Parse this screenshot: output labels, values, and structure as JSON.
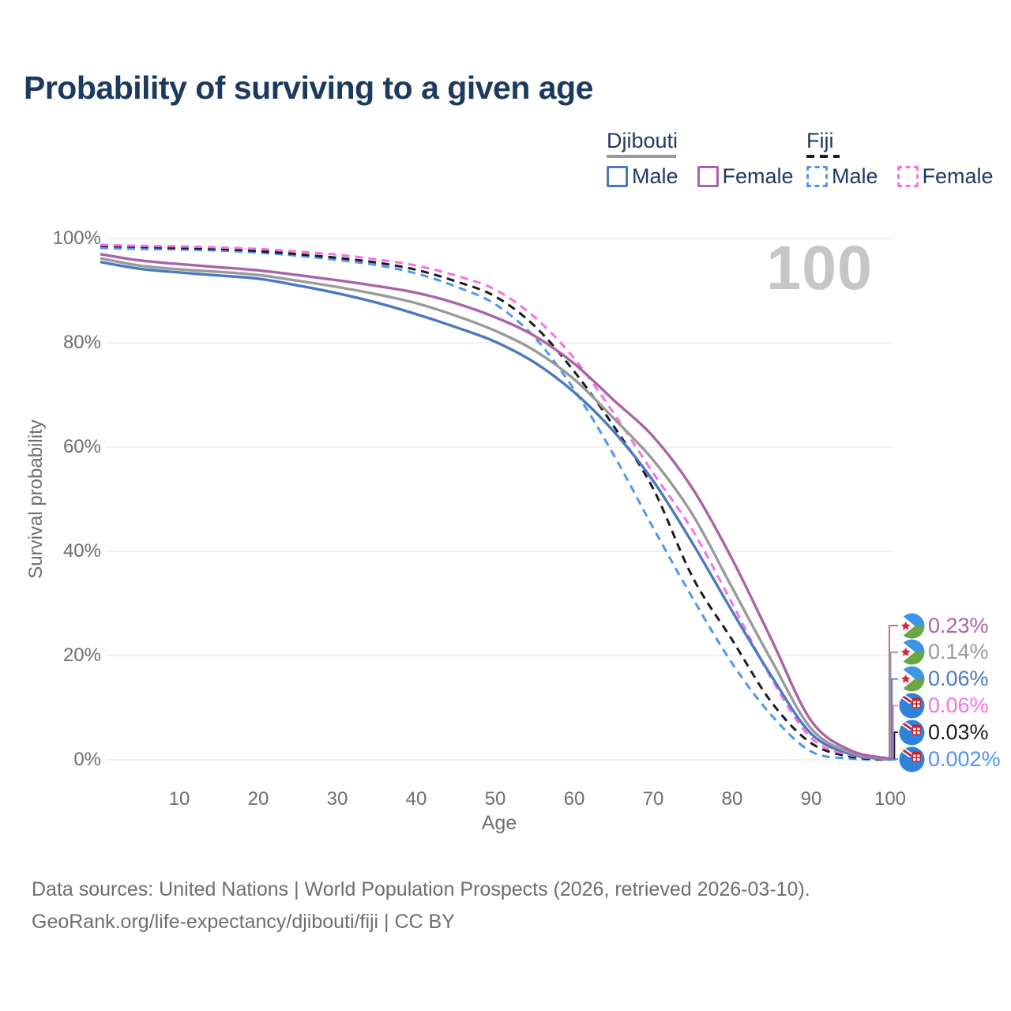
{
  "title": "Probability of surviving to a given age",
  "watermark_age": "100",
  "legend": {
    "groups": [
      {
        "country": "Djibouti",
        "line_style": "solid",
        "underline_color": "#9a9a9a",
        "items": [
          {
            "label": "Male",
            "color": "#4b79c1"
          },
          {
            "label": "Female",
            "color": "#ab62a8"
          }
        ]
      },
      {
        "country": "Fiji",
        "line_style": "dashed",
        "underline_color": "#1c1c1c",
        "items": [
          {
            "label": "Male",
            "color": "#4f94f8"
          },
          {
            "label": "Female",
            "color": "#fb6fe3"
          }
        ]
      }
    ]
  },
  "chart_data": {
    "type": "line",
    "title": "Probability of surviving to a given age",
    "xlabel": "Age",
    "ylabel": "Survival probability",
    "xlim": [
      0,
      100
    ],
    "ylim": [
      0,
      100
    ],
    "grid": "horizontal",
    "x_ticks": [
      10,
      20,
      30,
      40,
      50,
      60,
      70,
      80,
      90,
      100
    ],
    "y_ticks": [
      {
        "value": 0,
        "label": "0%"
      },
      {
        "value": 20,
        "label": "20%"
      },
      {
        "value": 40,
        "label": "40%"
      },
      {
        "value": 60,
        "label": "60%"
      },
      {
        "value": 80,
        "label": "80%"
      },
      {
        "value": 100,
        "label": "100%"
      }
    ],
    "x": [
      0,
      5,
      10,
      15,
      20,
      25,
      30,
      35,
      40,
      45,
      50,
      55,
      60,
      65,
      70,
      75,
      80,
      85,
      90,
      95,
      100
    ],
    "series": [
      {
        "name": "Djibouti Female",
        "flag": "djibouti",
        "color": "#ab62a8",
        "dash": false,
        "end_label": "0.23%",
        "values": [
          97.0,
          95.8,
          95.1,
          94.5,
          93.9,
          93.0,
          92.0,
          90.9,
          89.6,
          87.6,
          84.9,
          81.3,
          76.0,
          69.0,
          62.0,
          52.0,
          38.5,
          23.0,
          7.5,
          1.8,
          0.23
        ]
      },
      {
        "name": "Djibouti",
        "flag": "djibouti",
        "color": "#9a9a9a",
        "dash": false,
        "end_label": "0.14%",
        "values": [
          96.2,
          94.8,
          94.1,
          93.6,
          93.0,
          91.9,
          90.7,
          89.3,
          87.6,
          85.2,
          82.3,
          78.5,
          73.0,
          65.5,
          57.5,
          47.0,
          33.0,
          19.0,
          6.0,
          1.4,
          0.14
        ]
      },
      {
        "name": "Djibouti Male",
        "flag": "djibouti",
        "color": "#4b79c1",
        "dash": false,
        "end_label": "0.06%",
        "values": [
          95.5,
          94.2,
          93.5,
          92.9,
          92.3,
          91.0,
          89.5,
          87.7,
          85.5,
          83.0,
          80.2,
          76.2,
          70.5,
          63.0,
          53.5,
          41.5,
          28.5,
          16.0,
          5.0,
          1.1,
          0.06
        ]
      },
      {
        "name": "Fiji Female",
        "flag": "fiji",
        "color": "#fb6fe3",
        "dash": true,
        "end_label": "0.06%",
        "values": [
          98.8,
          98.6,
          98.5,
          98.3,
          98.0,
          97.5,
          96.9,
          96.0,
          94.8,
          92.9,
          90.2,
          84.9,
          77.0,
          66.5,
          55.0,
          44.0,
          30.0,
          15.5,
          4.2,
          0.9,
          0.06
        ]
      },
      {
        "name": "Fiji",
        "flag": "fiji",
        "color": "#1c1c1c",
        "dash": true,
        "end_label": "0.03%",
        "values": [
          98.6,
          98.4,
          98.2,
          98.0,
          97.6,
          97.0,
          96.3,
          95.4,
          94.0,
          91.8,
          88.9,
          83.2,
          74.5,
          64.0,
          52.0,
          35.0,
          23.0,
          11.0,
          3.2,
          0.6,
          0.03
        ]
      },
      {
        "name": "Fiji Male",
        "flag": "fiji",
        "color": "#4f94f8",
        "dash": true,
        "end_label": "0.002%",
        "values": [
          98.2,
          98.0,
          97.9,
          97.7,
          97.3,
          96.7,
          95.9,
          94.9,
          93.3,
          90.8,
          87.4,
          81.0,
          71.0,
          58.5,
          44.5,
          31.0,
          18.5,
          8.5,
          1.6,
          0.25,
          0.002
        ]
      }
    ]
  },
  "footer": {
    "line1": "Data sources: United Nations | World Population Prospects (2026, retrieved 2026-03-10).",
    "line2": "GeoRank.org/life-expectancy/djibouti/fiji | CC BY"
  }
}
